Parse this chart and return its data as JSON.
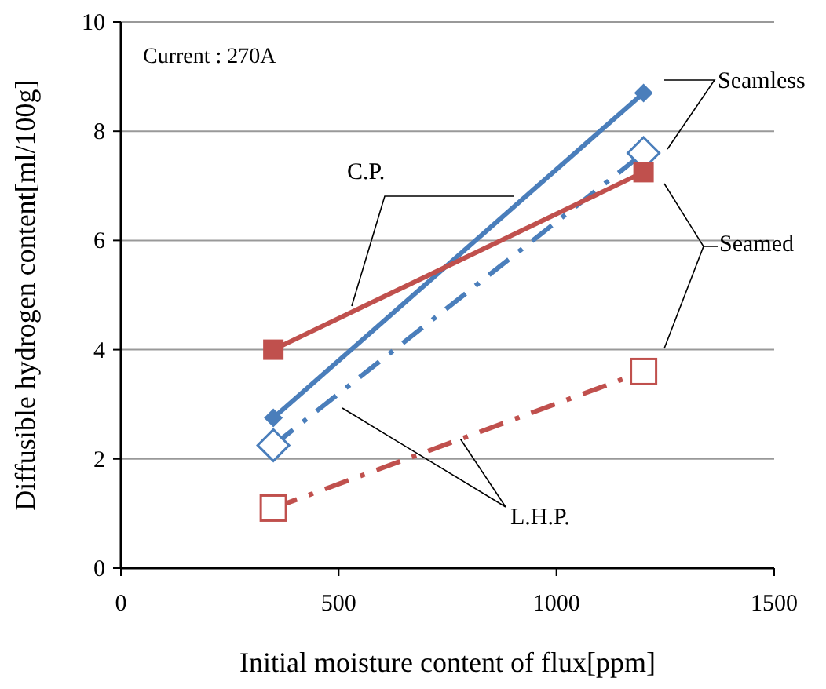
{
  "chart_data": {
    "type": "line",
    "xlabel": "Initial moisture content of flux[ppm]",
    "ylabel": "Diffusible hydrogen content[ml/100g]",
    "xlim": [
      0,
      1500
    ],
    "xticks": [
      0,
      500,
      1000,
      1500
    ],
    "ylim": [
      0,
      10
    ],
    "yticks": [
      0,
      2,
      4,
      6,
      8,
      10
    ],
    "grid": "y",
    "x": [
      350,
      1200
    ],
    "annotations": [
      "Current : 270A",
      "Seamless",
      {
        "text": "C.P.",
        "x": 530,
        "y": 4.8
      },
      "Seamed",
      {
        "text": "L.H.P.",
        "x": 780,
        "y": 2.36
      }
    ],
    "series": [
      {
        "color": "#4a7ebb",
        "values": [
          2.75,
          8.7
        ],
        "marker": "diamond",
        "line_style": "solid"
      },
      {
        "color": "#4a7ebb",
        "values": [
          2.25,
          7.6
        ],
        "marker": "diamond",
        "line_style": "dashed"
      },
      {
        "color": "#c0504d",
        "values": [
          4.0,
          7.25
        ],
        "marker": "square",
        "line_style": "solid"
      },
      {
        "color": "#c0504d",
        "values": [
          1.1,
          3.6
        ],
        "marker": "square",
        "line_style": "dashed"
      }
    ]
  }
}
